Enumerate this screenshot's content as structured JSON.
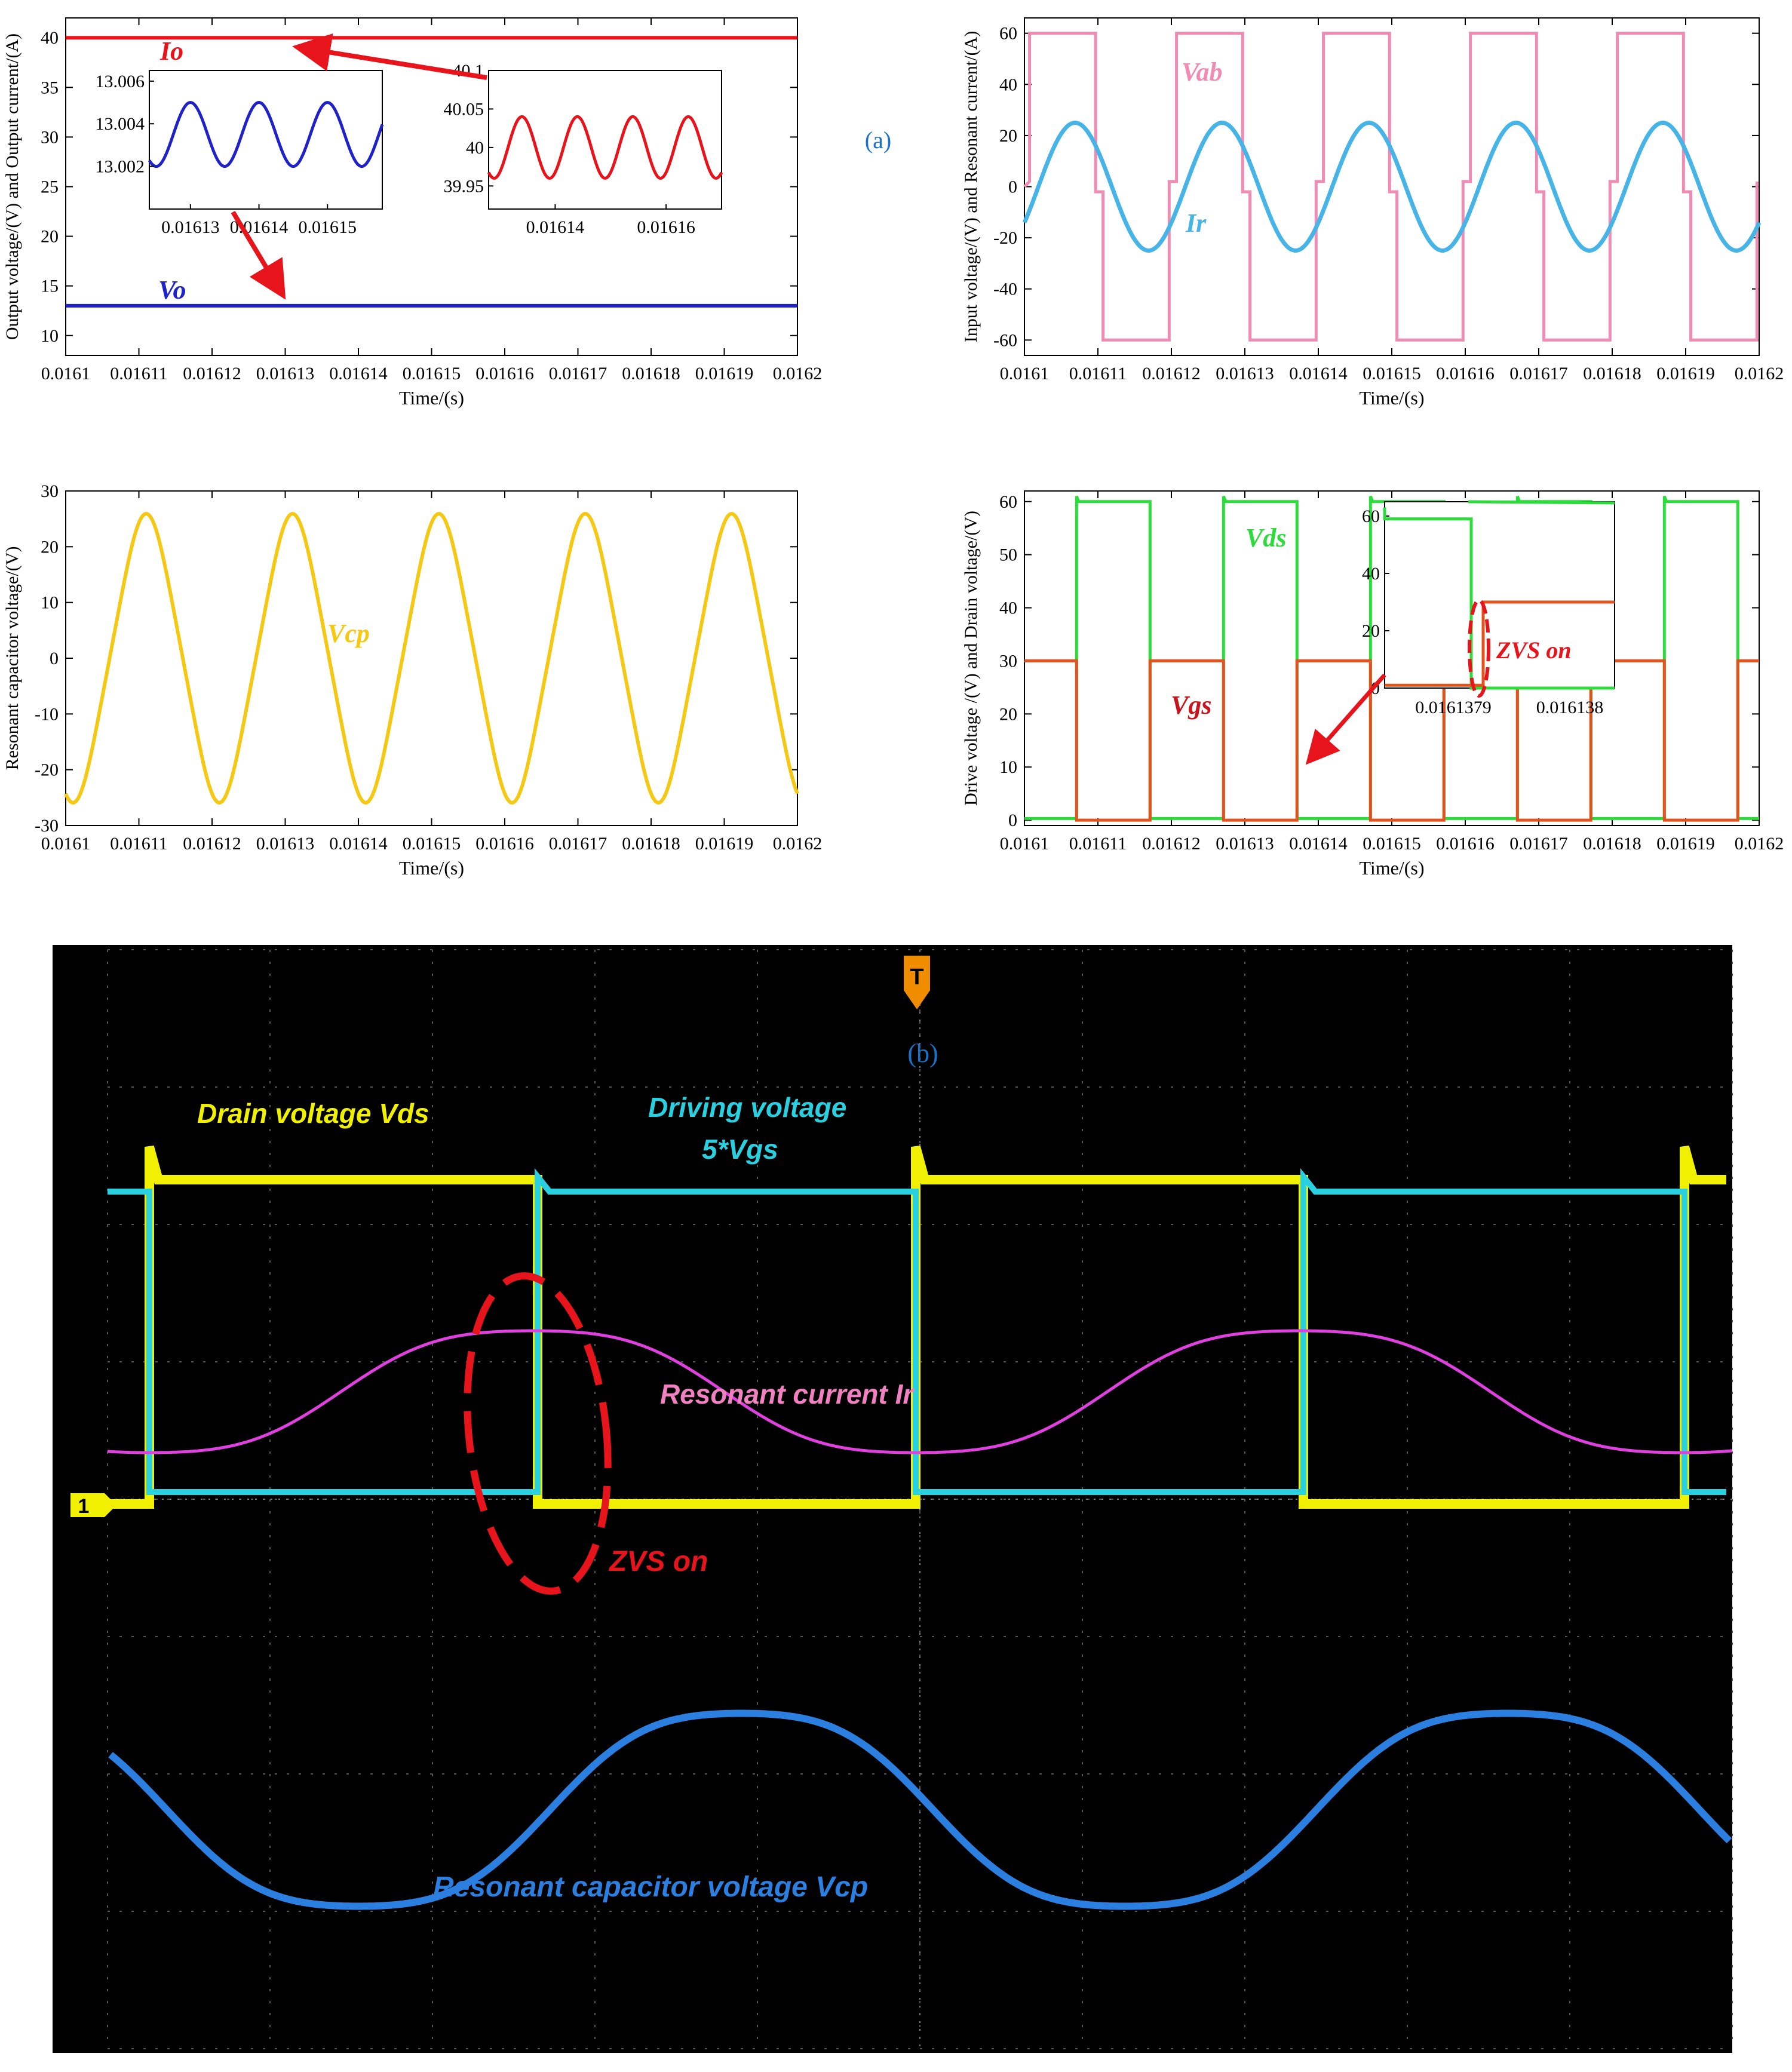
{
  "panel_a_label": "(a)",
  "panel_b_label": "(b)",
  "time_label": "Time/(s)",
  "time_ticks": [
    "0.0161",
    "0.01611",
    "0.01612",
    "0.01613",
    "0.01614",
    "0.01615",
    "0.01616",
    "0.01617",
    "0.01618",
    "0.01619",
    "0.0162"
  ],
  "chart_data": [
    {
      "type": "line",
      "id": "output",
      "ylabel": "Output voltage/(V) and Output current/(A)",
      "xlabel": "Time/(s)",
      "xlim": [
        0.0161,
        0.0162
      ],
      "ylim": [
        8,
        42
      ],
      "yticks": [
        10,
        15,
        20,
        25,
        30,
        35,
        40
      ],
      "series": [
        {
          "name": "Io",
          "color": "#e8141c",
          "kind": "const",
          "value": 40
        },
        {
          "name": "Vo",
          "color": "#1e22c8",
          "kind": "const",
          "value": 13
        }
      ],
      "insets": [
        {
          "xlim": [
            0.016124,
            0.016158
          ],
          "ylim": [
            13.0,
            13.0065
          ],
          "xticks": [
            "0.01613",
            "0.01614",
            "0.01615"
          ],
          "yticks": [
            "13.002",
            "13.004",
            "13.006"
          ],
          "color": "#1e22c8",
          "mean": 13.0035,
          "amp": 0.0015,
          "period": 1e-05
        },
        {
          "xlim": [
            0.016128,
            0.01617
          ],
          "ylim": [
            39.92,
            40.1
          ],
          "xticks": [
            "0.01614",
            "0.01616"
          ],
          "yticks": [
            "39.95",
            "40",
            "40.05",
            "40.1"
          ],
          "color": "#e8141c",
          "mean": 40.0,
          "amp": 0.04,
          "period": 1e-05
        }
      ]
    },
    {
      "type": "line",
      "id": "input",
      "ylabel": "Input voltage/(V) and Resonant current/(A)",
      "xlabel": "Time/(s)",
      "xlim": [
        0.0161,
        0.0162
      ],
      "ylim": [
        -66,
        66
      ],
      "yticks": [
        -60,
        -40,
        -20,
        0,
        20,
        40,
        60
      ],
      "series": [
        {
          "name": "Vab",
          "color": "#f08cb4",
          "kind": "square",
          "high": 60,
          "low": -60,
          "period": 2e-05
        },
        {
          "name": "Ir",
          "color": "#46b4e6",
          "kind": "sine",
          "amp": 25,
          "period": 2e-05
        }
      ]
    },
    {
      "type": "line",
      "id": "vcp",
      "ylabel": "Resonant capacitor voltage/(V)",
      "xlabel": "Time/(s)",
      "xlim": [
        0.0161,
        0.0162
      ],
      "ylim": [
        -30,
        30
      ],
      "yticks": [
        -30,
        -20,
        -10,
        0,
        10,
        20,
        30
      ],
      "series": [
        {
          "name": "Vcp",
          "color": "#f5c814",
          "kind": "sine",
          "amp": 24,
          "period": 2e-05
        }
      ]
    },
    {
      "type": "line",
      "id": "drive",
      "ylabel": "Drive voltage /(V) and Drain voltage/(V)",
      "xlabel": "Time/(s)",
      "xlim": [
        0.0161,
        0.0162
      ],
      "ylim": [
        -1,
        62
      ],
      "yticks": [
        0,
        10,
        20,
        30,
        40,
        50,
        60
      ],
      "series": [
        {
          "name": "Vds",
          "color": "#2ddc3c",
          "kind": "square",
          "high": 60,
          "low": 0,
          "period": 2e-05
        },
        {
          "name": "Vgs",
          "color": "#e0521e",
          "kind": "square",
          "high": 30,
          "low": 0,
          "period": 2e-05
        }
      ],
      "inset": {
        "ylim": [
          0,
          65
        ],
        "yticks": [
          "0",
          "20",
          "40",
          "60"
        ],
        "xticks": [
          "0.0161379",
          "0.016138"
        ]
      },
      "annotation": "ZVS on"
    },
    {
      "type": "line",
      "id": "oscilloscope",
      "series": [
        {
          "name": "Drain voltage Vds",
          "color": "#f0f000"
        },
        {
          "name": "Driving voltage 5*Vgs",
          "color": "#29d0e0"
        },
        {
          "name": "Resonant current Ir",
          "color": "#e040e0"
        },
        {
          "name": "Resonant capacitor voltage Vcp",
          "color": "#2a7fe0"
        }
      ],
      "annotation": "ZVS on",
      "channel_marker": "1",
      "trigger_marker": "T"
    }
  ],
  "labels": {
    "Io": "Io",
    "Vo": "Vo",
    "Vab": "Vab",
    "Ir": "Ir",
    "Vcp": "Vcp",
    "Vds": "Vds",
    "Vgs": "Vgs",
    "zvs": "ZVS on",
    "scope_vds": "Drain voltage Vds",
    "scope_vgs_1": "Driving voltage",
    "scope_vgs_2": "5*Vgs",
    "scope_ir": "Resonant current Ir",
    "scope_vcp": "Resonant capacitor voltage Vcp"
  }
}
